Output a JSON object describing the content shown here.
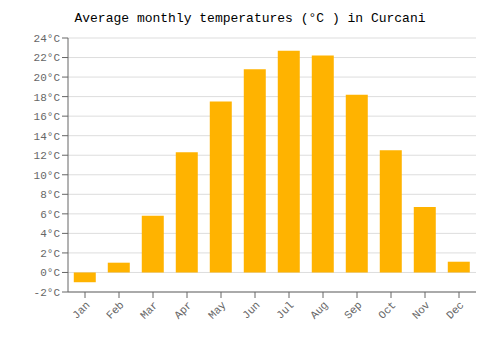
{
  "chart_data": {
    "type": "bar",
    "title": "Average monthly temperatures (°C ) in Curcani",
    "categories": [
      "Jan",
      "Feb",
      "Mar",
      "Apr",
      "May",
      "Jun",
      "Jul",
      "Aug",
      "Sep",
      "Oct",
      "Nov",
      "Dec"
    ],
    "values": [
      -1.0,
      1.0,
      5.8,
      12.3,
      17.5,
      20.8,
      22.7,
      22.2,
      18.2,
      12.5,
      6.7,
      1.1
    ],
    "color": "#FFB300",
    "ylim": [
      -2,
      24
    ],
    "yticks": [
      {
        "value": -2,
        "label": "-2°C"
      },
      {
        "value": 0,
        "label": "0°C"
      },
      {
        "value": 2,
        "label": "2°C"
      },
      {
        "value": 4,
        "label": "4°C"
      },
      {
        "value": 6,
        "label": "6°C"
      },
      {
        "value": 8,
        "label": "8°C"
      },
      {
        "value": 10,
        "label": "10°C"
      },
      {
        "value": 12,
        "label": "12°C"
      },
      {
        "value": 14,
        "label": "14°C"
      },
      {
        "value": 16,
        "label": "16°C"
      },
      {
        "value": 18,
        "label": "18°C"
      },
      {
        "value": 20,
        "label": "20°C"
      },
      {
        "value": 22,
        "label": "22°C"
      },
      {
        "value": 24,
        "label": "24°C"
      }
    ],
    "grid": true
  }
}
